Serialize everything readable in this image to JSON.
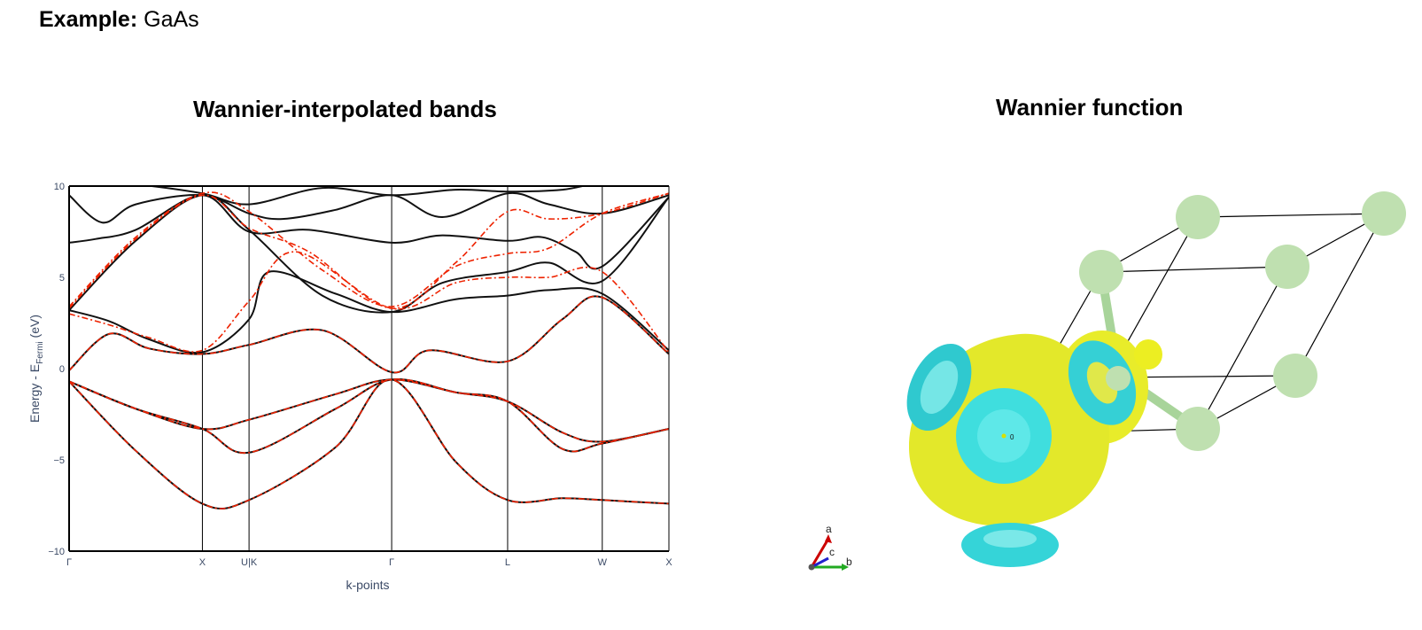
{
  "header": {
    "prefix": "Example:",
    "material": "GaAs"
  },
  "bands_panel": {
    "chart_data": {
      "type": "line",
      "title": "Wannier-interpolated bands",
      "xlabel": "k-points",
      "ylabel_main": "Energy - E",
      "ylabel_sub": "Fermi",
      "ylabel_unit": " (eV)",
      "ylim": [
        -10,
        10
      ],
      "yticks": [
        {
          "v": -10,
          "label": "−10"
        },
        {
          "v": -5,
          "label": "−5"
        },
        {
          "v": 0,
          "label": "0"
        },
        {
          "v": 5,
          "label": "5"
        },
        {
          "v": 10,
          "label": "10"
        }
      ],
      "xlim": [
        0,
        4.5
      ],
      "kpoints": [
        {
          "label": "Γ",
          "x": 0
        },
        {
          "label": "X",
          "x": 1.0
        },
        {
          "label": "U|K",
          "x": 1.35
        },
        {
          "label": "Γ",
          "x": 2.42
        },
        {
          "label": "L",
          "x": 3.29
        },
        {
          "label": "W",
          "x": 4.0
        },
        {
          "label": "X",
          "x": 4.5
        }
      ],
      "grid": false,
      "legend": "none",
      "colors": {
        "dft": "#111111",
        "wannier": "#ee2200"
      },
      "series": [
        {
          "style": "dft",
          "points": [
            [
              0,
              10.4
            ],
            [
              0.5,
              10.1
            ],
            [
              1.0,
              9.6
            ],
            [
              1.35,
              9.0
            ],
            [
              1.9,
              9.9
            ],
            [
              2.42,
              9.5
            ],
            [
              2.9,
              9.8
            ],
            [
              3.29,
              9.7
            ],
            [
              3.7,
              9.8
            ],
            [
              4.0,
              10.2
            ],
            [
              4.5,
              10.5
            ]
          ]
        },
        {
          "style": "dft",
          "points": [
            [
              0,
              9.5
            ],
            [
              0.25,
              8.0
            ],
            [
              0.5,
              9.0
            ],
            [
              1.0,
              9.5
            ],
            [
              1.35,
              8.5
            ],
            [
              1.6,
              8.2
            ],
            [
              2.0,
              8.7
            ],
            [
              2.42,
              9.5
            ],
            [
              2.8,
              8.3
            ],
            [
              3.29,
              9.6
            ],
            [
              3.6,
              9.0
            ],
            [
              4.0,
              8.5
            ],
            [
              4.5,
              9.5
            ]
          ]
        },
        {
          "style": "dft",
          "points": [
            [
              0,
              6.9
            ],
            [
              0.2,
              7.1
            ],
            [
              0.5,
              7.6
            ],
            [
              1.0,
              9.5
            ],
            [
              1.35,
              7.5
            ],
            [
              1.8,
              7.6
            ],
            [
              2.42,
              6.9
            ],
            [
              2.8,
              7.3
            ],
            [
              3.29,
              7.0
            ],
            [
              3.55,
              7.2
            ],
            [
              3.8,
              6.4
            ],
            [
              4.0,
              5.6
            ],
            [
              4.5,
              9.4
            ]
          ]
        },
        {
          "style": "dft",
          "points": [
            [
              0,
              3.2
            ],
            [
              0.3,
              2.6
            ],
            [
              0.6,
              1.6
            ],
            [
              1.0,
              0.9
            ],
            [
              1.35,
              2.7
            ],
            [
              1.5,
              5.3
            ],
            [
              2.0,
              4.1
            ],
            [
              2.42,
              3.1
            ],
            [
              2.9,
              3.8
            ],
            [
              3.29,
              4.0
            ],
            [
              3.6,
              4.3
            ],
            [
              4.0,
              4.1
            ],
            [
              4.5,
              1.0
            ]
          ]
        },
        {
          "style": "dft",
          "points": [
            [
              0,
              3.2
            ],
            [
              0.5,
              7.0
            ],
            [
              1.0,
              9.5
            ],
            [
              1.35,
              7.6
            ],
            [
              1.9,
              4.0
            ],
            [
              2.42,
              3.1
            ],
            [
              2.8,
              4.7
            ],
            [
              3.29,
              5.3
            ],
            [
              3.6,
              5.8
            ],
            [
              4.0,
              4.8
            ],
            [
              4.5,
              9.4
            ]
          ]
        },
        {
          "style": "dft",
          "points": [
            [
              0,
              -0.1
            ],
            [
              0.3,
              1.9
            ],
            [
              0.6,
              1.1
            ],
            [
              1.0,
              0.8
            ],
            [
              1.35,
              1.3
            ],
            [
              1.9,
              2.1
            ],
            [
              2.42,
              -0.2
            ],
            [
              2.7,
              1.0
            ],
            [
              3.29,
              0.4
            ],
            [
              3.7,
              2.7
            ],
            [
              4.0,
              3.9
            ],
            [
              4.5,
              0.8
            ]
          ]
        },
        {
          "style": "dft",
          "points": [
            [
              0,
              -0.7
            ],
            [
              0.5,
              -2.2
            ],
            [
              1.0,
              -3.3
            ],
            [
              1.35,
              -2.8
            ],
            [
              2.0,
              -1.4
            ],
            [
              2.42,
              -0.6
            ],
            [
              2.9,
              -1.3
            ],
            [
              3.29,
              -1.8
            ],
            [
              3.7,
              -3.5
            ],
            [
              4.0,
              -4.0
            ],
            [
              4.5,
              -3.3
            ]
          ]
        },
        {
          "style": "dft",
          "points": [
            [
              0,
              -0.7
            ],
            [
              0.5,
              -2.2
            ],
            [
              1.0,
              -3.3
            ],
            [
              1.35,
              -4.6
            ],
            [
              2.0,
              -2.2
            ],
            [
              2.42,
              -0.6
            ],
            [
              2.9,
              -1.3
            ],
            [
              3.29,
              -1.8
            ],
            [
              3.7,
              -4.4
            ],
            [
              4.0,
              -4.1
            ],
            [
              4.5,
              -3.3
            ]
          ]
        },
        {
          "style": "dft",
          "points": [
            [
              0,
              -0.7
            ],
            [
              0.5,
              -4.5
            ],
            [
              1.0,
              -7.4
            ],
            [
              1.35,
              -7.2
            ],
            [
              2.0,
              -4.3
            ],
            [
              2.42,
              -0.6
            ],
            [
              2.9,
              -5.1
            ],
            [
              3.29,
              -7.2
            ],
            [
              3.7,
              -7.1
            ],
            [
              4.0,
              -7.2
            ],
            [
              4.5,
              -7.4
            ]
          ]
        },
        {
          "style": "wannier",
          "points": [
            [
              0,
              3.4
            ],
            [
              0.5,
              7.2
            ],
            [
              1.0,
              9.6
            ],
            [
              1.35,
              8.6
            ],
            [
              1.9,
              5.4
            ],
            [
              2.42,
              3.4
            ],
            [
              2.9,
              5.6
            ],
            [
              3.29,
              6.3
            ],
            [
              3.6,
              6.6
            ],
            [
              4.0,
              8.5
            ],
            [
              4.5,
              9.6
            ]
          ]
        },
        {
          "style": "wannier",
          "points": [
            [
              0,
              3.3
            ],
            [
              0.5,
              7.1
            ],
            [
              1.0,
              9.5
            ],
            [
              1.35,
              7.7
            ],
            [
              1.8,
              6.4
            ],
            [
              2.42,
              3.3
            ],
            [
              2.9,
              5.8
            ],
            [
              3.29,
              8.6
            ],
            [
              3.6,
              8.2
            ],
            [
              4.0,
              8.5
            ],
            [
              4.5,
              9.6
            ]
          ]
        },
        {
          "style": "wannier",
          "points": [
            [
              0,
              3.0
            ],
            [
              0.3,
              2.4
            ],
            [
              0.6,
              1.7
            ],
            [
              1.0,
              1.0
            ],
            [
              1.35,
              3.7
            ],
            [
              1.7,
              6.4
            ],
            [
              2.42,
              3.3
            ],
            [
              2.9,
              4.7
            ],
            [
              3.29,
              5.0
            ],
            [
              3.6,
              5.0
            ],
            [
              4.0,
              5.3
            ],
            [
              4.5,
              0.9
            ]
          ]
        },
        {
          "style": "wannier",
          "points": [
            [
              0,
              -0.1
            ],
            [
              0.3,
              1.9
            ],
            [
              0.6,
              1.1
            ],
            [
              1.0,
              0.8
            ],
            [
              1.35,
              1.3
            ],
            [
              1.9,
              2.1
            ],
            [
              2.42,
              -0.2
            ],
            [
              2.7,
              1.0
            ],
            [
              3.29,
              0.4
            ],
            [
              3.7,
              2.7
            ],
            [
              4.0,
              3.9
            ],
            [
              4.5,
              0.8
            ]
          ]
        },
        {
          "style": "wannier",
          "points": [
            [
              0,
              -0.7
            ],
            [
              0.5,
              -2.2
            ],
            [
              1.0,
              -3.3
            ],
            [
              1.35,
              -2.8
            ],
            [
              2.0,
              -1.4
            ],
            [
              2.42,
              -0.6
            ],
            [
              2.9,
              -1.3
            ],
            [
              3.29,
              -1.8
            ],
            [
              3.7,
              -3.5
            ],
            [
              4.0,
              -4.0
            ],
            [
              4.5,
              -3.3
            ]
          ]
        },
        {
          "style": "wannier",
          "points": [
            [
              0,
              -0.7
            ],
            [
              0.5,
              -2.2
            ],
            [
              1.0,
              -3.3
            ],
            [
              1.35,
              -4.6
            ],
            [
              2.0,
              -2.2
            ],
            [
              2.42,
              -0.6
            ],
            [
              2.9,
              -1.3
            ],
            [
              3.29,
              -1.8
            ],
            [
              3.7,
              -4.4
            ],
            [
              4.0,
              -4.1
            ],
            [
              4.5,
              -3.3
            ]
          ]
        },
        {
          "style": "wannier",
          "points": [
            [
              0,
              -0.7
            ],
            [
              0.5,
              -4.5
            ],
            [
              1.0,
              -7.4
            ],
            [
              1.35,
              -7.2
            ],
            [
              2.0,
              -4.3
            ],
            [
              2.42,
              -0.6
            ],
            [
              2.9,
              -5.1
            ],
            [
              3.29,
              -7.2
            ],
            [
              3.7,
              -7.1
            ],
            [
              4.0,
              -7.2
            ],
            [
              4.5,
              -7.4
            ]
          ]
        }
      ]
    }
  },
  "wannier_panel": {
    "title": "Wannier function",
    "atom_label": "0",
    "axes": {
      "a": "a",
      "b": "b",
      "c": "c"
    },
    "colors": {
      "positive_lobe": "#e8ec2a",
      "negative_lobe": "#3fdede",
      "atom": "#bfe0b0",
      "cell_line": "#000000"
    }
  }
}
